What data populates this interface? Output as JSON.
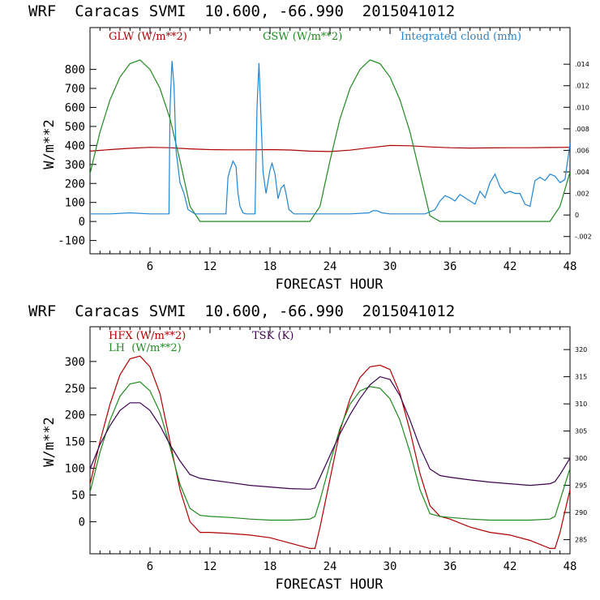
{
  "colors": {
    "red": "#b00000",
    "green": "#1e8b1e",
    "blue": "#1f86d6",
    "purple": "#3c0050"
  },
  "chart_data": [
    {
      "type": "line",
      "title": "WRF  Caracas SVMI  10.600, -66.990  2015041012",
      "xlabel": "FORECAST HOUR",
      "ylabel": "W/m**2",
      "xlim": [
        0,
        48
      ],
      "ylim": [
        -170,
        1020
      ],
      "x_ticks": [
        6,
        12,
        18,
        24,
        30,
        36,
        42,
        48
      ],
      "y_ticks": [
        -100,
        0,
        100,
        200,
        300,
        400,
        500,
        600,
        700,
        800
      ],
      "right_axis": {
        "ylim": [
          -0.0036,
          0.0174
        ],
        "ticks": [
          -0.002,
          0,
          0.002,
          0.004,
          0.006,
          0.008,
          0.01,
          0.012,
          0.014
        ],
        "tick_labels": [
          "-.002",
          "0",
          ".002",
          ".004",
          ".006",
          ".008",
          ".010",
          ".012",
          ".014"
        ]
      },
      "series": [
        {
          "name": "GLW (W/m**2)",
          "color": "#b00000",
          "axis": "left",
          "x": [
            0,
            2,
            4,
            6,
            8,
            10,
            12,
            14,
            16,
            18,
            20,
            22,
            24,
            26,
            28,
            30,
            32,
            34,
            36,
            38,
            40,
            42,
            44,
            46,
            48
          ],
          "y": [
            370,
            378,
            385,
            390,
            388,
            382,
            378,
            377,
            377,
            378,
            376,
            370,
            368,
            375,
            388,
            400,
            398,
            392,
            388,
            386,
            387,
            388,
            388,
            389,
            390
          ]
        },
        {
          "name": "GSW (W/m**2)",
          "color": "#1e8b1e",
          "axis": "left",
          "x": [
            0,
            1,
            2,
            3,
            4,
            5,
            6,
            7,
            8,
            9,
            10,
            11,
            22,
            23,
            24,
            25,
            26,
            27,
            28,
            29,
            30,
            31,
            32,
            33,
            34,
            35,
            46,
            47,
            48
          ],
          "y": [
            250,
            470,
            640,
            760,
            830,
            850,
            800,
            700,
            540,
            320,
            80,
            0,
            0,
            80,
            320,
            540,
            700,
            800,
            850,
            830,
            760,
            640,
            470,
            250,
            30,
            0,
            0,
            80,
            260
          ]
        },
        {
          "name": "Integrated cloud (mm)",
          "color": "#1f86d6",
          "axis": "right",
          "x": [
            0,
            2,
            4,
            6,
            7.9,
            8.0,
            8.2,
            8.4,
            8.6,
            9.0,
            9.4,
            9.8,
            10.5,
            12,
            13.6,
            13.8,
            14.0,
            14.3,
            14.6,
            14.8,
            15.0,
            15.3,
            15.6,
            16.5,
            16.7,
            16.9,
            17.1,
            17.3,
            17.6,
            18.0,
            18.2,
            18.5,
            18.8,
            19.1,
            19.4,
            19.6,
            19.9,
            20.4,
            22,
            24,
            26,
            27.9,
            28.3,
            28.7,
            29.2,
            30,
            32,
            33.5,
            34.5,
            35,
            35.5,
            36,
            36.5,
            37,
            37.5,
            38,
            38.5,
            39,
            39.5,
            40,
            40.5,
            41,
            41.5,
            42,
            42.5,
            43,
            43.5,
            44,
            44.5,
            45,
            45.5,
            46,
            46.5,
            47,
            47.5,
            48
          ],
          "y": [
            0.0001,
            0.0001,
            0.0002,
            0.0001,
            0.0001,
            0.01,
            0.0143,
            0.012,
            0.006,
            0.003,
            0.002,
            0.0005,
            0.0001,
            0.0001,
            0.0001,
            0.0035,
            0.0042,
            0.005,
            0.0045,
            0.002,
            0.0008,
            0.0002,
            0.0001,
            0.0001,
            0.01,
            0.0141,
            0.009,
            0.004,
            0.002,
            0.0042,
            0.0048,
            0.0038,
            0.0015,
            0.0025,
            0.0028,
            0.002,
            0.0005,
            0.0001,
            0.0001,
            0.0001,
            0.0001,
            0.0002,
            0.0004,
            0.0004,
            0.0002,
            0.0001,
            0.0001,
            0.0001,
            0.0005,
            0.0013,
            0.0018,
            0.0016,
            0.0013,
            0.0019,
            0.0016,
            0.0013,
            0.001,
            0.0022,
            0.0016,
            0.003,
            0.0038,
            0.0026,
            0.002,
            0.0022,
            0.002,
            0.002,
            0.001,
            0.0008,
            0.0032,
            0.0035,
            0.0032,
            0.0038,
            0.0036,
            0.003,
            0.0033,
            0.0066
          ]
        }
      ],
      "legend": [
        {
          "label": "GLW (W/m**2)",
          "color": "#b00000"
        },
        {
          "label": "GSW (W/m**2)",
          "color": "#1e8b1e"
        },
        {
          "label": "Integrated cloud (mm)",
          "color": "#1f86d6"
        }
      ]
    },
    {
      "type": "line",
      "title": "WRF  Caracas SVMI  10.600, -66.990  2015041012",
      "xlabel": "FORECAST HOUR",
      "ylabel": "W/m**2",
      "xlim": [
        0,
        48
      ],
      "ylim": [
        -60,
        365
      ],
      "x_ticks": [
        6,
        12,
        18,
        24,
        30,
        36,
        42,
        48
      ],
      "y_ticks": [
        0,
        50,
        100,
        150,
        200,
        250,
        300
      ],
      "right_axis": {
        "ylim": [
          282.4,
          324.2
        ],
        "ticks": [
          285,
          290,
          295,
          300,
          305,
          310,
          315,
          320
        ],
        "tick_labels": [
          "285",
          "290",
          "295",
          "300",
          "305",
          "310",
          "315",
          "320"
        ]
      },
      "series": [
        {
          "name": "HFX (W/m**2)",
          "color": "#b00000",
          "axis": "left",
          "x": [
            0,
            1,
            2,
            3,
            4,
            5,
            6,
            7,
            8,
            9,
            10,
            11,
            12,
            14,
            16,
            18,
            20,
            22,
            22.5,
            23,
            24,
            25,
            26,
            27,
            28,
            29,
            30,
            31,
            32,
            33,
            34,
            35,
            36,
            38,
            40,
            42,
            44,
            46,
            46.5,
            47,
            48
          ],
          "y": [
            70,
            150,
            220,
            275,
            305,
            310,
            290,
            240,
            150,
            60,
            0,
            -20,
            -20,
            -22,
            -25,
            -30,
            -40,
            -50,
            -50,
            -10,
            80,
            170,
            230,
            270,
            290,
            293,
            285,
            240,
            170,
            90,
            30,
            10,
            5,
            -10,
            -20,
            -25,
            -35,
            -50,
            -50,
            -20,
            60
          ]
        },
        {
          "name": "LH (W/m**2)",
          "color": "#1e8b1e",
          "axis": "left",
          "x": [
            0,
            1,
            2,
            3,
            4,
            5,
            6,
            7,
            8,
            9,
            10,
            11,
            12,
            14,
            16,
            18,
            20,
            22,
            22.5,
            23,
            24,
            25,
            26,
            27,
            28,
            29,
            30,
            31,
            32,
            33,
            34,
            35,
            36,
            38,
            40,
            42,
            44,
            46,
            46.5,
            47,
            48
          ],
          "y": [
            55,
            130,
            190,
            235,
            258,
            262,
            245,
            205,
            140,
            70,
            25,
            12,
            10,
            8,
            5,
            3,
            3,
            5,
            10,
            40,
            110,
            175,
            220,
            245,
            253,
            250,
            230,
            190,
            130,
            60,
            15,
            10,
            8,
            5,
            3,
            3,
            3,
            5,
            10,
            40,
            100
          ]
        },
        {
          "name": "TSK (K)",
          "color": "#3c0050",
          "axis": "right",
          "x": [
            0,
            1,
            2,
            3,
            4,
            5,
            6,
            7,
            8,
            9,
            10,
            11,
            12,
            14,
            16,
            18,
            20,
            22,
            22.5,
            23,
            24,
            25,
            26,
            27,
            28,
            29,
            30,
            31,
            32,
            33,
            34,
            35,
            36,
            38,
            40,
            42,
            44,
            46,
            46.5,
            47,
            48
          ],
          "y": [
            298.0,
            302.5,
            306.0,
            308.8,
            310.2,
            310.2,
            308.8,
            306.0,
            302.5,
            299.5,
            297.0,
            296.3,
            296.0,
            295.5,
            295.0,
            294.7,
            294.4,
            294.3,
            294.5,
            296.5,
            300.5,
            304.5,
            308.0,
            311.0,
            313.5,
            315.0,
            314.5,
            311.5,
            307.0,
            302.0,
            298.0,
            296.8,
            296.5,
            296.0,
            295.6,
            295.3,
            295.0,
            295.3,
            295.7,
            297.0,
            300.0
          ]
        }
      ],
      "legend": [
        {
          "label": "HFX (W/m**2)",
          "color": "#b00000"
        },
        {
          "label": "LH  (W/m**2)",
          "color": "#1e8b1e"
        },
        {
          "label": "TSK (K)",
          "color": "#3c0050"
        }
      ]
    }
  ]
}
